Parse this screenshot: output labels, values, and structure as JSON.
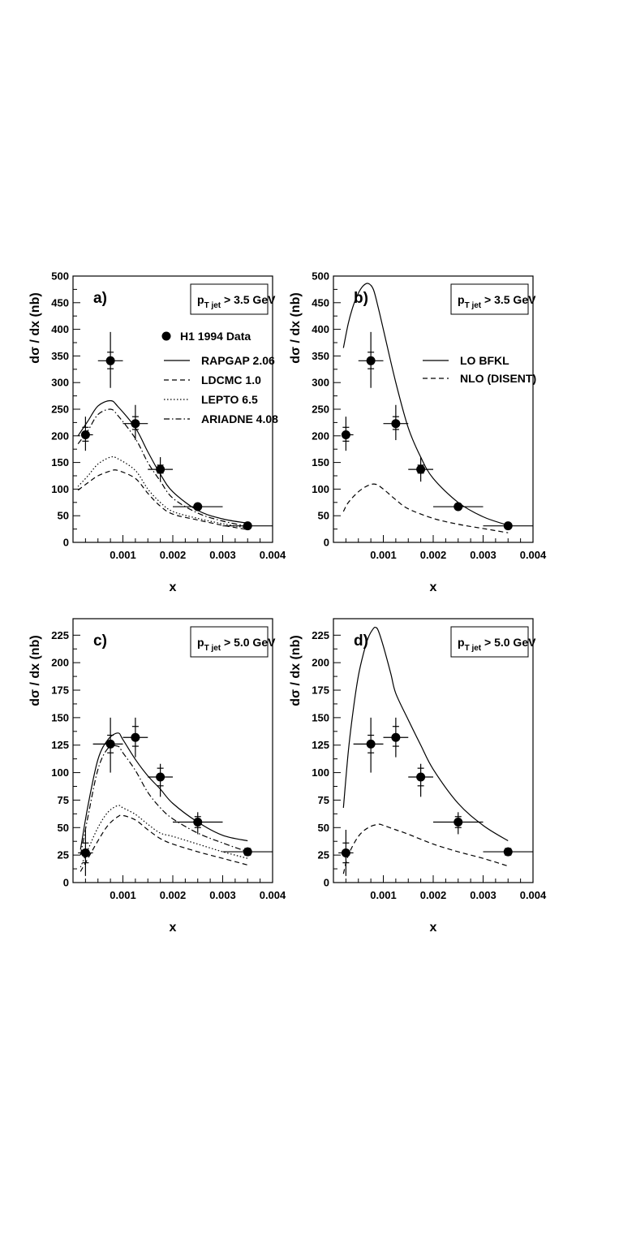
{
  "chart_data": [
    {
      "type": "line",
      "panel": "a)",
      "cut_label": {
        "main": "p",
        "sub": "T jet",
        "rest": " > 3.5 GeV"
      },
      "xlabel": "x",
      "ylabel": "dσ / dx   (nb)",
      "xlim": [
        0,
        0.004
      ],
      "ylim": [
        0,
        500
      ],
      "xticks": [
        0.001,
        0.002,
        0.003,
        0.004
      ],
      "xtick_labels": [
        "0.001",
        "0.002",
        "0.003",
        "0.004"
      ],
      "yticks": [
        0,
        50,
        100,
        150,
        200,
        250,
        300,
        350,
        400,
        450,
        500
      ],
      "ytick_labels": [
        "0",
        "50",
        "100",
        "150",
        "200",
        "250",
        "300",
        "350",
        "400",
        "450",
        "500"
      ],
      "data": {
        "name": "H1 1994 Data",
        "points": [
          {
            "x": 0.00025,
            "y": 202,
            "xerr": [
              0.0002,
              0.0004
            ],
            "yerr_stat": [
              190,
              216
            ],
            "yerr_tot": [
              172,
              236
            ]
          },
          {
            "x": 0.00075,
            "y": 341,
            "xerr": [
              0.0005,
              0.001
            ],
            "yerr_stat": [
              326,
              357
            ],
            "yerr_tot": [
              290,
              395
            ]
          },
          {
            "x": 0.00125,
            "y": 223,
            "xerr": [
              0.001,
              0.0015
            ],
            "yerr_stat": [
              212,
              236
            ],
            "yerr_tot": [
              192,
              258
            ]
          },
          {
            "x": 0.00175,
            "y": 137,
            "xerr": [
              0.0015,
              0.002
            ],
            "yerr_stat": [
              130,
              145
            ],
            "yerr_tot": [
              114,
              160
            ]
          },
          {
            "x": 0.0025,
            "y": 67,
            "xerr": [
              0.002,
              0.003
            ],
            "yerr_stat": [
              63,
              71
            ],
            "yerr_tot": [
              59,
              75
            ]
          },
          {
            "x": 0.0035,
            "y": 31,
            "xerr": [
              0.003,
              0.004
            ],
            "yerr_stat": [
              28,
              34
            ],
            "yerr_tot": [
              27,
              36
            ]
          }
        ]
      },
      "series": [
        {
          "name": "RAPGAP 2.06",
          "style": "solid",
          "x": [
            0.0001,
            0.0003,
            0.0005,
            0.00075,
            0.0009,
            0.00125,
            0.0015,
            0.00175,
            0.002,
            0.0025,
            0.003,
            0.0035
          ],
          "y": [
            200,
            228,
            256,
            266,
            255,
            215,
            170,
            128,
            95,
            60,
            44,
            36
          ]
        },
        {
          "name": "LDCMC 1.0",
          "style": "dashed",
          "x": [
            0.0001,
            0.0003,
            0.0005,
            0.00075,
            0.0009,
            0.00125,
            0.0015,
            0.00175,
            0.002,
            0.0025,
            0.003,
            0.0035
          ],
          "y": [
            98,
            112,
            125,
            134,
            135,
            120,
            92,
            68,
            53,
            42,
            32,
            24
          ]
        },
        {
          "name": "LEPTO 6.5",
          "style": "dotted",
          "x": [
            0.0001,
            0.0003,
            0.0005,
            0.00075,
            0.0009,
            0.00125,
            0.0015,
            0.00175,
            0.002,
            0.0025,
            0.003,
            0.0035
          ],
          "y": [
            105,
            125,
            147,
            160,
            157,
            135,
            100,
            75,
            58,
            45,
            35,
            27
          ]
        },
        {
          "name": "ARIADNE 4.08",
          "style": "dashdot",
          "x": [
            0.0001,
            0.0003,
            0.0005,
            0.00075,
            0.0009,
            0.00125,
            0.0015,
            0.00175,
            0.002,
            0.0025,
            0.003,
            0.0035
          ],
          "y": [
            185,
            210,
            240,
            250,
            238,
            195,
            150,
            115,
            83,
            55,
            40,
            30
          ]
        }
      ]
    },
    {
      "type": "line",
      "panel": "b)",
      "cut_label": {
        "main": "p",
        "sub": "T jet",
        "rest": " > 3.5 GeV"
      },
      "xlabel": "x",
      "ylabel": "dσ / dx   (nb)",
      "xlim": [
        0,
        0.004
      ],
      "ylim": [
        0,
        500
      ],
      "xticks": [
        0.001,
        0.002,
        0.003,
        0.004
      ],
      "xtick_labels": [
        "0.001",
        "0.002",
        "0.003",
        "0.004"
      ],
      "yticks": [
        0,
        50,
        100,
        150,
        200,
        250,
        300,
        350,
        400,
        450,
        500
      ],
      "ytick_labels": [
        "0",
        "50",
        "100",
        "150",
        "200",
        "250",
        "300",
        "350",
        "400",
        "450",
        "500"
      ],
      "data": {
        "name": "H1 1994 Data",
        "points": [
          {
            "x": 0.00025,
            "y": 202,
            "xerr": [
              0.0002,
              0.0004
            ],
            "yerr_stat": [
              190,
              216
            ],
            "yerr_tot": [
              172,
              236
            ]
          },
          {
            "x": 0.00075,
            "y": 341,
            "xerr": [
              0.0005,
              0.001
            ],
            "yerr_stat": [
              326,
              357
            ],
            "yerr_tot": [
              290,
              395
            ]
          },
          {
            "x": 0.00125,
            "y": 223,
            "xerr": [
              0.001,
              0.0015
            ],
            "yerr_stat": [
              212,
              236
            ],
            "yerr_tot": [
              192,
              258
            ]
          },
          {
            "x": 0.00175,
            "y": 137,
            "xerr": [
              0.0015,
              0.002
            ],
            "yerr_stat": [
              130,
              145
            ],
            "yerr_tot": [
              114,
              160
            ]
          },
          {
            "x": 0.0025,
            "y": 67,
            "xerr": [
              0.002,
              0.003
            ],
            "yerr_stat": [
              63,
              71
            ],
            "yerr_tot": [
              59,
              75
            ]
          },
          {
            "x": 0.0035,
            "y": 31,
            "xerr": [
              0.003,
              0.004
            ],
            "yerr_stat": [
              28,
              34
            ],
            "yerr_tot": [
              27,
              36
            ]
          }
        ]
      },
      "series": [
        {
          "name": "LO BFKL",
          "style": "solid",
          "x": [
            0.0002,
            0.0003,
            0.0004,
            0.0005,
            0.0006,
            0.0007,
            0.0008,
            0.0009,
            0.001,
            0.00125,
            0.0015,
            0.00175,
            0.002,
            0.0025,
            0.003,
            0.0035
          ],
          "y": [
            365,
            412,
            445,
            468,
            482,
            486,
            475,
            440,
            400,
            300,
            215,
            160,
            120,
            75,
            48,
            32
          ]
        },
        {
          "name": "NLO (DISENT)",
          "style": "dashed",
          "x": [
            0.0002,
            0.0003,
            0.0005,
            0.0007,
            0.00085,
            0.001,
            0.00125,
            0.0015,
            0.002,
            0.0025,
            0.003,
            0.0035
          ],
          "y": [
            58,
            75,
            95,
            107,
            109,
            100,
            80,
            63,
            45,
            34,
            26,
            18
          ]
        }
      ],
      "legend_without_data": true
    },
    {
      "type": "line",
      "panel": "c)",
      "cut_label": {
        "main": "p",
        "sub": "T jet",
        "rest": " > 5.0 GeV"
      },
      "xlabel": "x",
      "ylabel": "dσ / dx   (nb)",
      "xlim": [
        0,
        0.004
      ],
      "ylim": [
        0,
        240
      ],
      "xticks": [
        0.001,
        0.002,
        0.003,
        0.004
      ],
      "xtick_labels": [
        "0.001",
        "0.002",
        "0.003",
        "0.004"
      ],
      "yticks": [
        0,
        25,
        50,
        75,
        100,
        125,
        150,
        175,
        200,
        225
      ],
      "ytick_labels": [
        "0",
        "25",
        "50",
        "75",
        "100",
        "125",
        "150",
        "175",
        "200",
        "225"
      ],
      "data": {
        "name": "H1 1994 Data",
        "points": [
          {
            "x": 0.00025,
            "y": 27,
            "xerr": [
              0.0001,
              0.0004
            ],
            "yerr_stat": [
              18,
              36
            ],
            "yerr_tot": [
              6,
              48
            ]
          },
          {
            "x": 0.00075,
            "y": 126,
            "xerr": [
              0.0004,
              0.001
            ],
            "yerr_stat": [
              118,
              134
            ],
            "yerr_tot": [
              100,
              150
            ]
          },
          {
            "x": 0.00125,
            "y": 132,
            "xerr": [
              0.001,
              0.0015
            ],
            "yerr_stat": [
              124,
              142
            ],
            "yerr_tot": [
              114,
              150
            ]
          },
          {
            "x": 0.00175,
            "y": 96,
            "xerr": [
              0.0015,
              0.002
            ],
            "yerr_stat": [
              88,
              104
            ],
            "yerr_tot": [
              78,
              108
            ]
          },
          {
            "x": 0.0025,
            "y": 55,
            "xerr": [
              0.002,
              0.003
            ],
            "yerr_stat": [
              50,
              60
            ],
            "yerr_tot": [
              44,
              64
            ]
          },
          {
            "x": 0.0035,
            "y": 28,
            "xerr": [
              0.003,
              0.004
            ],
            "yerr_stat": [
              25,
              31
            ],
            "yerr_tot": [
              24,
              32
            ]
          }
        ]
      },
      "series": [
        {
          "name": "RAPGAP 2.06",
          "style": "solid",
          "x": [
            0.00015,
            0.0003,
            0.0005,
            0.0007,
            0.0009,
            0.001,
            0.00125,
            0.0015,
            0.00175,
            0.002,
            0.0025,
            0.003,
            0.0035
          ],
          "y": [
            30,
            70,
            112,
            130,
            136,
            130,
            112,
            97,
            85,
            72,
            55,
            43,
            38
          ]
        },
        {
          "name": "LDCMC 1.0",
          "style": "dashed",
          "x": [
            0.00015,
            0.0003,
            0.0005,
            0.0007,
            0.0009,
            0.001,
            0.00125,
            0.0015,
            0.00175,
            0.002,
            0.0025,
            0.003,
            0.0035
          ],
          "y": [
            10,
            22,
            38,
            52,
            60,
            61,
            57,
            48,
            40,
            35,
            28,
            22,
            16
          ]
        },
        {
          "name": "LEPTO 6.5",
          "style": "dotted",
          "x": [
            0.00015,
            0.0003,
            0.0005,
            0.0007,
            0.0009,
            0.001,
            0.00125,
            0.0015,
            0.00175,
            0.002,
            0.0025,
            0.003,
            0.0035
          ],
          "y": [
            14,
            30,
            50,
            64,
            70,
            68,
            62,
            53,
            45,
            42,
            35,
            28,
            22
          ]
        },
        {
          "name": "ARIADNE 4.08",
          "style": "dashdot",
          "x": [
            0.00015,
            0.0003,
            0.0005,
            0.0007,
            0.0009,
            0.001,
            0.00125,
            0.0015,
            0.00175,
            0.002,
            0.0025,
            0.003,
            0.0035
          ],
          "y": [
            25,
            60,
            103,
            122,
            124,
            118,
            102,
            82,
            68,
            58,
            45,
            36,
            28
          ]
        }
      ],
      "legend_hidden": true
    },
    {
      "type": "line",
      "panel": "d)",
      "cut_label": {
        "main": "p",
        "sub": "T jet",
        "rest": " > 5.0 GeV"
      },
      "xlabel": "x",
      "ylabel": "dσ / dx   (nb)",
      "xlim": [
        0,
        0.004
      ],
      "ylim": [
        0,
        240
      ],
      "xticks": [
        0.001,
        0.002,
        0.003,
        0.004
      ],
      "xtick_labels": [
        "0.001",
        "0.002",
        "0.003",
        "0.004"
      ],
      "yticks": [
        0,
        25,
        50,
        75,
        100,
        125,
        150,
        175,
        200,
        225
      ],
      "ytick_labels": [
        "0",
        "25",
        "50",
        "75",
        "100",
        "125",
        "150",
        "175",
        "200",
        "225"
      ],
      "data": {
        "name": "H1 1994 Data",
        "points": [
          {
            "x": 0.00025,
            "y": 27,
            "xerr": [
              0.0001,
              0.0004
            ],
            "yerr_stat": [
              18,
              36
            ],
            "yerr_tot": [
              6,
              48
            ]
          },
          {
            "x": 0.00075,
            "y": 126,
            "xerr": [
              0.0004,
              0.001
            ],
            "yerr_stat": [
              118,
              134
            ],
            "yerr_tot": [
              100,
              150
            ]
          },
          {
            "x": 0.00125,
            "y": 132,
            "xerr": [
              0.001,
              0.0015
            ],
            "yerr_stat": [
              124,
              142
            ],
            "yerr_tot": [
              114,
              150
            ]
          },
          {
            "x": 0.00175,
            "y": 96,
            "xerr": [
              0.0015,
              0.002
            ],
            "yerr_stat": [
              88,
              104
            ],
            "yerr_tot": [
              78,
              108
            ]
          },
          {
            "x": 0.0025,
            "y": 55,
            "xerr": [
              0.002,
              0.003
            ],
            "yerr_stat": [
              50,
              60
            ],
            "yerr_tot": [
              44,
              64
            ]
          },
          {
            "x": 0.0035,
            "y": 28,
            "xerr": [
              0.003,
              0.004
            ],
            "yerr_stat": [
              25,
              31
            ],
            "yerr_tot": [
              24,
              32
            ]
          }
        ]
      },
      "series": [
        {
          "name": "LO BFKL",
          "style": "solid",
          "x": [
            0.0002,
            0.0003,
            0.0004,
            0.0005,
            0.0006,
            0.0007,
            0.0008,
            0.00085,
            0.0009,
            0.001,
            0.00115,
            0.00125,
            0.0015,
            0.00175,
            0.002,
            0.0025,
            0.003,
            0.0035
          ],
          "y": [
            68,
            120,
            158,
            188,
            208,
            223,
            231,
            232,
            229,
            215,
            190,
            172,
            148,
            125,
            103,
            72,
            52,
            38
          ]
        },
        {
          "name": "NLO (DISENT)",
          "style": "dashed",
          "x": [
            0.0002,
            0.0003,
            0.0005,
            0.0007,
            0.0009,
            0.001,
            0.00125,
            0.0015,
            0.002,
            0.0025,
            0.003,
            0.0035
          ],
          "y": [
            8,
            25,
            42,
            50,
            53,
            52,
            48,
            44,
            35,
            28,
            22,
            15
          ]
        }
      ],
      "legend_hidden": true
    }
  ]
}
